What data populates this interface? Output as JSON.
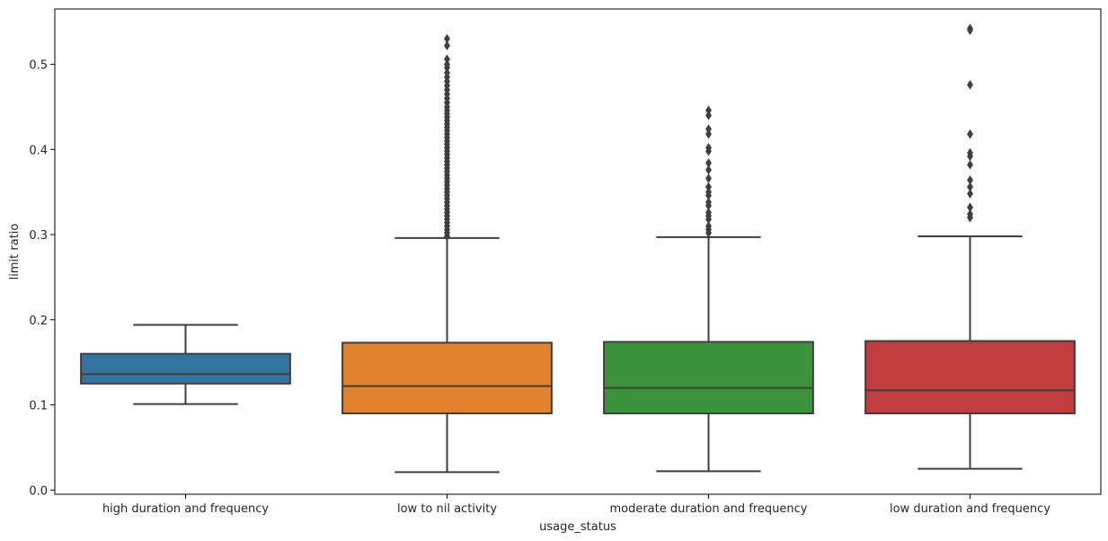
{
  "chart_data": {
    "type": "box",
    "xlabel": "usage_status",
    "ylabel": "limit ratio",
    "ylim": [
      -0.005,
      0.565
    ],
    "yticks": [
      0.0,
      0.1,
      0.2,
      0.3,
      0.4,
      0.5
    ],
    "ytick_labels": [
      "0.0",
      "0.1",
      "0.2",
      "0.3",
      "0.4",
      "0.5"
    ],
    "grid": false,
    "legend": "none",
    "boxes": [
      {
        "category": "high duration and frequency",
        "color": "#3274a1",
        "whisker_low": 0.101,
        "q1": 0.125,
        "median": 0.136,
        "q3": 0.16,
        "whisker_high": 0.194,
        "outliers": []
      },
      {
        "category": "low to nil activity",
        "color": "#e1812c",
        "whisker_low": 0.021,
        "q1": 0.09,
        "median": 0.122,
        "q3": 0.173,
        "whisker_high": 0.296,
        "outliers": [
          0.298,
          0.302,
          0.306,
          0.31,
          0.314,
          0.318,
          0.322,
          0.326,
          0.33,
          0.334,
          0.338,
          0.342,
          0.346,
          0.35,
          0.354,
          0.358,
          0.362,
          0.366,
          0.37,
          0.374,
          0.378,
          0.382,
          0.386,
          0.39,
          0.394,
          0.398,
          0.402,
          0.406,
          0.41,
          0.414,
          0.418,
          0.422,
          0.426,
          0.43,
          0.434,
          0.438,
          0.442,
          0.446,
          0.45,
          0.455,
          0.46,
          0.465,
          0.47,
          0.475,
          0.48,
          0.485,
          0.49,
          0.496,
          0.5,
          0.506,
          0.522,
          0.53
        ]
      },
      {
        "category": "moderate duration and frequency",
        "color": "#3a923a",
        "whisker_low": 0.022,
        "q1": 0.09,
        "median": 0.12,
        "q3": 0.174,
        "whisker_high": 0.297,
        "outliers": [
          0.302,
          0.306,
          0.31,
          0.318,
          0.322,
          0.326,
          0.334,
          0.338,
          0.346,
          0.35,
          0.356,
          0.366,
          0.376,
          0.384,
          0.398,
          0.402,
          0.418,
          0.424,
          0.44,
          0.446
        ]
      },
      {
        "category": "low duration and frequency",
        "color": "#c03d3e",
        "whisker_low": 0.025,
        "q1": 0.09,
        "median": 0.117,
        "q3": 0.175,
        "whisker_high": 0.298,
        "outliers": [
          0.32,
          0.324,
          0.332,
          0.348,
          0.356,
          0.364,
          0.382,
          0.392,
          0.396,
          0.418,
          0.476,
          0.54,
          0.542
        ]
      }
    ]
  }
}
